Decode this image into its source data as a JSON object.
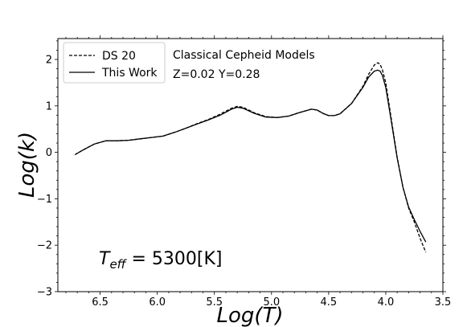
{
  "chart_data": {
    "type": "line",
    "xlabel": "Log(T)",
    "ylabel": "Log(k)",
    "xlim": [
      6.87,
      3.5
    ],
    "ylim": [
      -3,
      2.45
    ],
    "x_inverted": true,
    "x_ticks": [
      "6.5",
      "6.0",
      "5.5",
      "5.0",
      "4.5",
      "4.0",
      "3.5"
    ],
    "x_tick_values": [
      6.5,
      6.0,
      5.5,
      5.0,
      4.5,
      4.0,
      3.5
    ],
    "y_ticks": [
      "2",
      "1",
      "0",
      "−1",
      "−2",
      "−3"
    ],
    "y_tick_values": [
      2,
      1,
      0,
      -1,
      -2,
      -3
    ],
    "grid": false,
    "legend_position": "top-left",
    "annotations": {
      "model_title": "Classical Cepheid Models",
      "composition": "Z=0.02 Y=0.28",
      "teff_symbol": "T",
      "teff_subscript": "eff",
      "teff_value": " = 5300[K]"
    },
    "series": [
      {
        "name": "DS 20",
        "style": "dashed",
        "color": "#000000",
        "x": [
          6.72,
          6.65,
          6.55,
          6.45,
          6.35,
          6.25,
          6.15,
          6.05,
          5.95,
          5.85,
          5.75,
          5.65,
          5.55,
          5.45,
          5.35,
          5.3,
          5.25,
          5.15,
          5.05,
          4.95,
          4.85,
          4.75,
          4.65,
          4.6,
          4.55,
          4.5,
          4.45,
          4.4,
          4.3,
          4.2,
          4.15,
          4.1,
          4.07,
          4.05,
          4.03,
          4.0,
          3.95,
          3.9,
          3.85,
          3.8,
          3.75,
          3.7,
          3.65
        ],
        "y": [
          -0.05,
          0.05,
          0.18,
          0.25,
          0.25,
          0.26,
          0.29,
          0.32,
          0.35,
          0.43,
          0.52,
          0.62,
          0.71,
          0.82,
          0.95,
          0.99,
          0.97,
          0.85,
          0.77,
          0.75,
          0.78,
          0.86,
          0.93,
          0.91,
          0.84,
          0.79,
          0.79,
          0.83,
          1.05,
          1.42,
          1.68,
          1.88,
          1.93,
          1.9,
          1.78,
          1.5,
          0.7,
          -0.1,
          -0.75,
          -1.2,
          -1.5,
          -1.85,
          -2.15
        ]
      },
      {
        "name": "This Work",
        "style": "solid",
        "color": "#000000",
        "x": [
          6.72,
          6.65,
          6.55,
          6.45,
          6.35,
          6.25,
          6.15,
          6.05,
          5.95,
          5.85,
          5.75,
          5.65,
          5.55,
          5.45,
          5.35,
          5.3,
          5.25,
          5.15,
          5.05,
          4.95,
          4.85,
          4.75,
          4.65,
          4.6,
          4.55,
          4.5,
          4.45,
          4.4,
          4.3,
          4.2,
          4.15,
          4.1,
          4.07,
          4.05,
          4.03,
          4.0,
          3.95,
          3.9,
          3.85,
          3.8,
          3.75,
          3.7,
          3.65
        ],
        "y": [
          -0.05,
          0.05,
          0.18,
          0.25,
          0.25,
          0.26,
          0.29,
          0.32,
          0.35,
          0.43,
          0.52,
          0.61,
          0.7,
          0.8,
          0.93,
          0.97,
          0.95,
          0.84,
          0.76,
          0.75,
          0.78,
          0.86,
          0.93,
          0.91,
          0.84,
          0.79,
          0.79,
          0.83,
          1.05,
          1.4,
          1.62,
          1.75,
          1.77,
          1.75,
          1.66,
          1.4,
          0.65,
          -0.12,
          -0.75,
          -1.18,
          -1.45,
          -1.7,
          -1.93
        ]
      }
    ]
  }
}
